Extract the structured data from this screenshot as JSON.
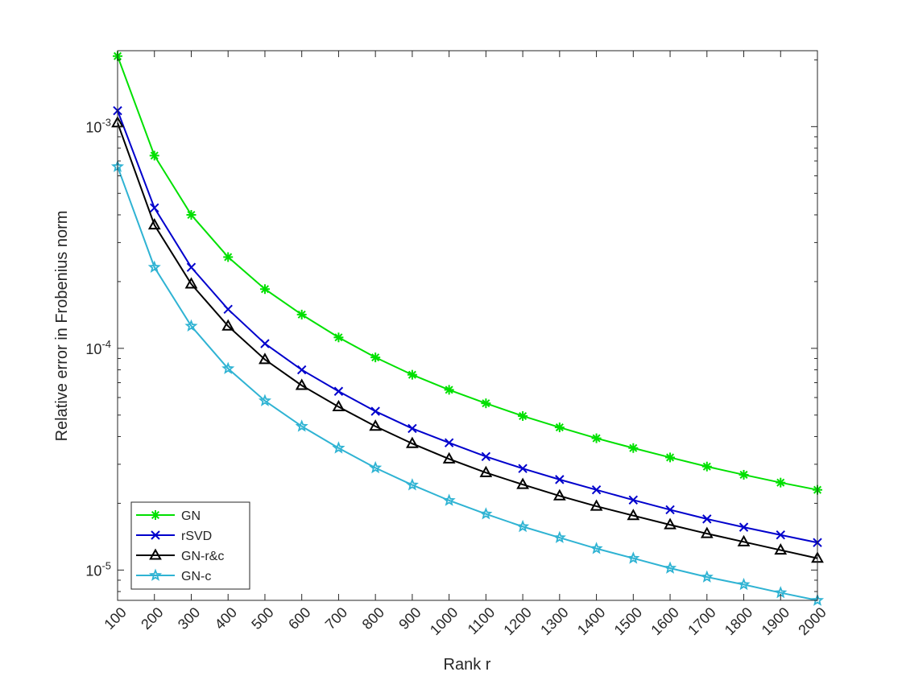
{
  "chart_data": {
    "type": "line",
    "title": "",
    "xlabel": "Rank r",
    "ylabel": "Relative error in Frobenius norm",
    "yscale": "log",
    "xlim": [
      100,
      2000
    ],
    "ylim": [
      7.3e-06,
      0.0022
    ],
    "x": [
      100,
      200,
      300,
      400,
      500,
      600,
      700,
      800,
      900,
      1000,
      1100,
      1200,
      1300,
      1400,
      1500,
      1600,
      1700,
      1800,
      1900,
      2000
    ],
    "x_tick_labels": [
      "100",
      "200",
      "300",
      "400",
      "500",
      "600",
      "700",
      "800",
      "900",
      "1000",
      "1100",
      "1200",
      "1300",
      "1400",
      "1500",
      "1600",
      "1700",
      "1800",
      "1900",
      "2000"
    ],
    "y_ticks": [
      {
        "value": 1e-05,
        "base": "10",
        "exp": "-5"
      },
      {
        "value": 0.0001,
        "base": "10",
        "exp": "-4"
      },
      {
        "value": 0.001,
        "base": "10",
        "exp": "-3"
      }
    ],
    "grid": false,
    "box": true,
    "legend_position": "bottom-left",
    "series": [
      {
        "name": "GN",
        "color": "#00e000",
        "marker": "asterisk",
        "values": [
          0.00208,
          0.00074,
          0.0004,
          0.000258,
          0.000185,
          0.000142,
          0.000112,
          9.1e-05,
          7.6e-05,
          6.5e-05,
          5.65e-05,
          4.95e-05,
          4.4e-05,
          3.93e-05,
          3.55e-05,
          3.22e-05,
          2.93e-05,
          2.69e-05,
          2.48e-05,
          2.3e-05
        ]
      },
      {
        "name": "rSVD",
        "color": "#0000cc",
        "marker": "x",
        "values": [
          0.00118,
          0.00043,
          0.000232,
          0.00015,
          0.000105,
          8e-05,
          6.4e-05,
          5.2e-05,
          4.35e-05,
          3.75e-05,
          3.25e-05,
          2.87e-05,
          2.56e-05,
          2.3e-05,
          2.07e-05,
          1.87e-05,
          1.7e-05,
          1.56e-05,
          1.44e-05,
          1.33e-05
        ]
      },
      {
        "name": "GN-r&c",
        "color": "#000000",
        "marker": "triangle",
        "values": [
          0.00104,
          0.00036,
          0.000195,
          0.000126,
          8.9e-05,
          6.8e-05,
          5.45e-05,
          4.45e-05,
          3.72e-05,
          3.17e-05,
          2.75e-05,
          2.43e-05,
          2.16e-05,
          1.94e-05,
          1.76e-05,
          1.6e-05,
          1.46e-05,
          1.34e-05,
          1.23e-05,
          1.13e-05
        ]
      },
      {
        "name": "GN-c",
        "color": "#2fb3d3",
        "marker": "star",
        "values": [
          0.00066,
          0.000232,
          0.000126,
          8.1e-05,
          5.8e-05,
          4.45e-05,
          3.55e-05,
          2.89e-05,
          2.42e-05,
          2.06e-05,
          1.79e-05,
          1.57e-05,
          1.4e-05,
          1.25e-05,
          1.13e-05,
          1.02e-05,
          9.3e-06,
          8.6e-06,
          7.9e-06,
          7.3e-06
        ]
      }
    ]
  }
}
